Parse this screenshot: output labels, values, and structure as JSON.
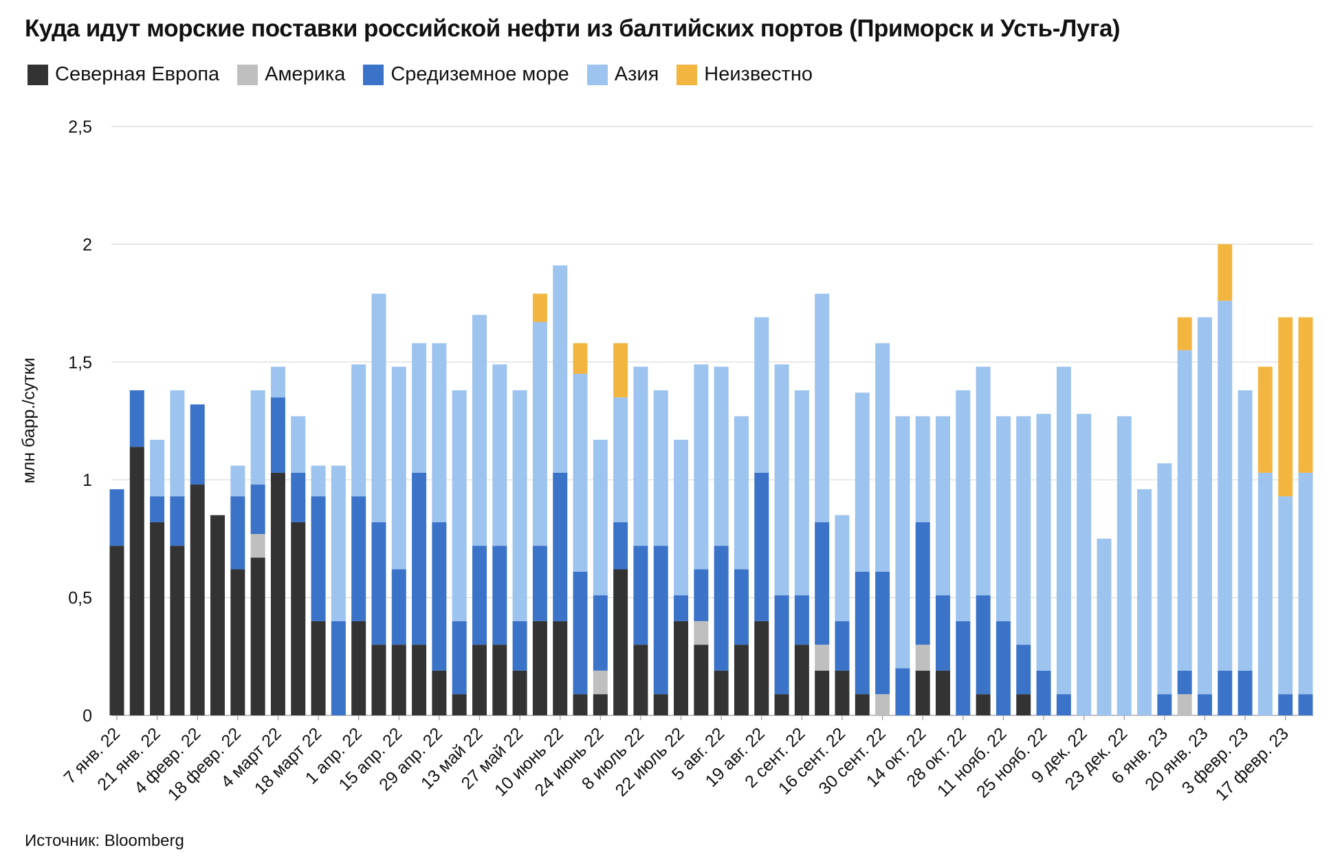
{
  "chart_data": {
    "type": "bar",
    "stacked": true,
    "title": "Куда идут морские поставки российской нефти из балтийских портов (Приморск и Усть-Луга)",
    "ylabel": "млн барр./сутки",
    "xlabel": "",
    "ylim": [
      0,
      2.5
    ],
    "y_ticks": [
      "0",
      "0,5",
      "1",
      "1,5",
      "2",
      "2,5"
    ],
    "y_tick_values": [
      0,
      0.5,
      1,
      1.5,
      2,
      2.5
    ],
    "grid": true,
    "legend_position": "top-left",
    "x_tick_labels": [
      "7 янв. 22",
      "21 янв. 22",
      "4 февр. 22",
      "18 февр. 22",
      "4 март 22",
      "18 март 22",
      "1 апр. 22",
      "15 апр. 22",
      "29 апр. 22",
      "13 май 22",
      "27 май 22",
      "10 июнь 22",
      "24 июнь 22",
      "8 июль 22",
      "22 июль 22",
      "5 авг. 22",
      "19 авг. 22",
      "2 сент. 22",
      "16 сент. 22",
      "30 сент. 22",
      "14 окт. 22",
      "28 окт. 22",
      "11 нояб. 22",
      "25 нояб. 22",
      "9 дек. 22",
      "23 дек. 22",
      "6 янв. 23",
      "20 янв. 23",
      "3 февр. 23",
      "17 февр. 23"
    ],
    "series": [
      {
        "name": "Северная Европа",
        "color": "#333333",
        "values": [
          0.72,
          1.14,
          0.82,
          0.72,
          0.98,
          0.85,
          0.62,
          0.67,
          1.03,
          0.82,
          0.4,
          0,
          0.4,
          0.3,
          0.3,
          0.3,
          0.19,
          0.09,
          0.3,
          0.3,
          0.19,
          0.4,
          0.4,
          0.09,
          0.09,
          0.62,
          0.3,
          0.09,
          0.4,
          0.3,
          0.19,
          0.3,
          0.4,
          0.09,
          0.3,
          0.19,
          0.19,
          0.09,
          0,
          0,
          0.19,
          0.19,
          0,
          0.09,
          0,
          0.09,
          0,
          0,
          0,
          0,
          0,
          0,
          0,
          0,
          0,
          0,
          0,
          0,
          0,
          0
        ]
      },
      {
        "name": "Америка",
        "color": "#bfbfbf",
        "values": [
          0,
          0,
          0,
          0,
          0,
          0,
          0,
          0.1,
          0,
          0,
          0,
          0,
          0,
          0,
          0,
          0,
          0,
          0,
          0,
          0,
          0,
          0,
          0,
          0,
          0.1,
          0,
          0,
          0,
          0,
          0.1,
          0,
          0,
          0,
          0,
          0,
          0.11,
          0,
          0,
          0.09,
          0,
          0.11,
          0,
          0,
          0,
          0,
          0,
          0,
          0,
          0,
          0,
          0,
          0,
          0,
          0.09,
          0,
          0,
          0,
          0,
          0,
          0
        ]
      },
      {
        "name": "Средиземное море",
        "color": "#3a73c8",
        "values": [
          0.24,
          0.24,
          0.11,
          0.21,
          0.34,
          0,
          0.31,
          0.21,
          0.32,
          0.21,
          0.53,
          0.4,
          0.53,
          0.52,
          0.32,
          0.73,
          0.63,
          0.31,
          0.42,
          0.42,
          0.21,
          0.32,
          0.63,
          0.52,
          0.32,
          0.2,
          0.42,
          0.63,
          0.11,
          0.22,
          0.53,
          0.32,
          0.63,
          0.42,
          0.21,
          0.52,
          0.21,
          0.52,
          0.52,
          0.2,
          0.52,
          0.32,
          0.4,
          0.42,
          0.4,
          0.21,
          0.19,
          0.09,
          0,
          0,
          0,
          0,
          0.09,
          0.1,
          0.09,
          0.19,
          0.19,
          0,
          0.09,
          0.09
        ]
      },
      {
        "name": "Азия",
        "color": "#9dc3ef",
        "values": [
          0,
          0,
          0.24,
          0.45,
          0,
          0,
          0.13,
          0.4,
          0.13,
          0.24,
          0.13,
          0.66,
          0.56,
          0.97,
          0.86,
          0.55,
          0.76,
          0.98,
          0.98,
          0.77,
          0.98,
          0.95,
          0.88,
          0.84,
          0.66,
          0.53,
          0.76,
          0.66,
          0.66,
          0.87,
          0.76,
          0.65,
          0.66,
          0.98,
          0.87,
          0.97,
          0.45,
          0.76,
          0.97,
          1.07,
          0.45,
          0.76,
          0.98,
          0.97,
          0.87,
          0.97,
          1.09,
          1.39,
          1.28,
          0.75,
          1.27,
          0.96,
          0.98,
          1.36,
          1.6,
          1.57,
          1.19,
          1.03,
          0.84,
          0.94
        ]
      },
      {
        "name": "Неизвестно",
        "color": "#f2b640",
        "values": [
          0,
          0,
          0,
          0,
          0,
          0,
          0,
          0,
          0,
          0,
          0,
          0,
          0,
          0,
          0,
          0,
          0,
          0,
          0,
          0,
          0,
          0.12,
          0,
          0.13,
          0,
          0.23,
          0,
          0,
          0,
          0,
          0,
          0,
          0,
          0,
          0,
          0,
          0,
          0,
          0,
          0,
          0,
          0,
          0,
          0,
          0,
          0,
          0,
          0,
          0,
          0,
          0,
          0,
          0,
          0.14,
          0,
          0.24,
          0,
          0.45,
          0.76,
          0.66
        ]
      }
    ]
  },
  "source": "Источник: Bloomberg"
}
